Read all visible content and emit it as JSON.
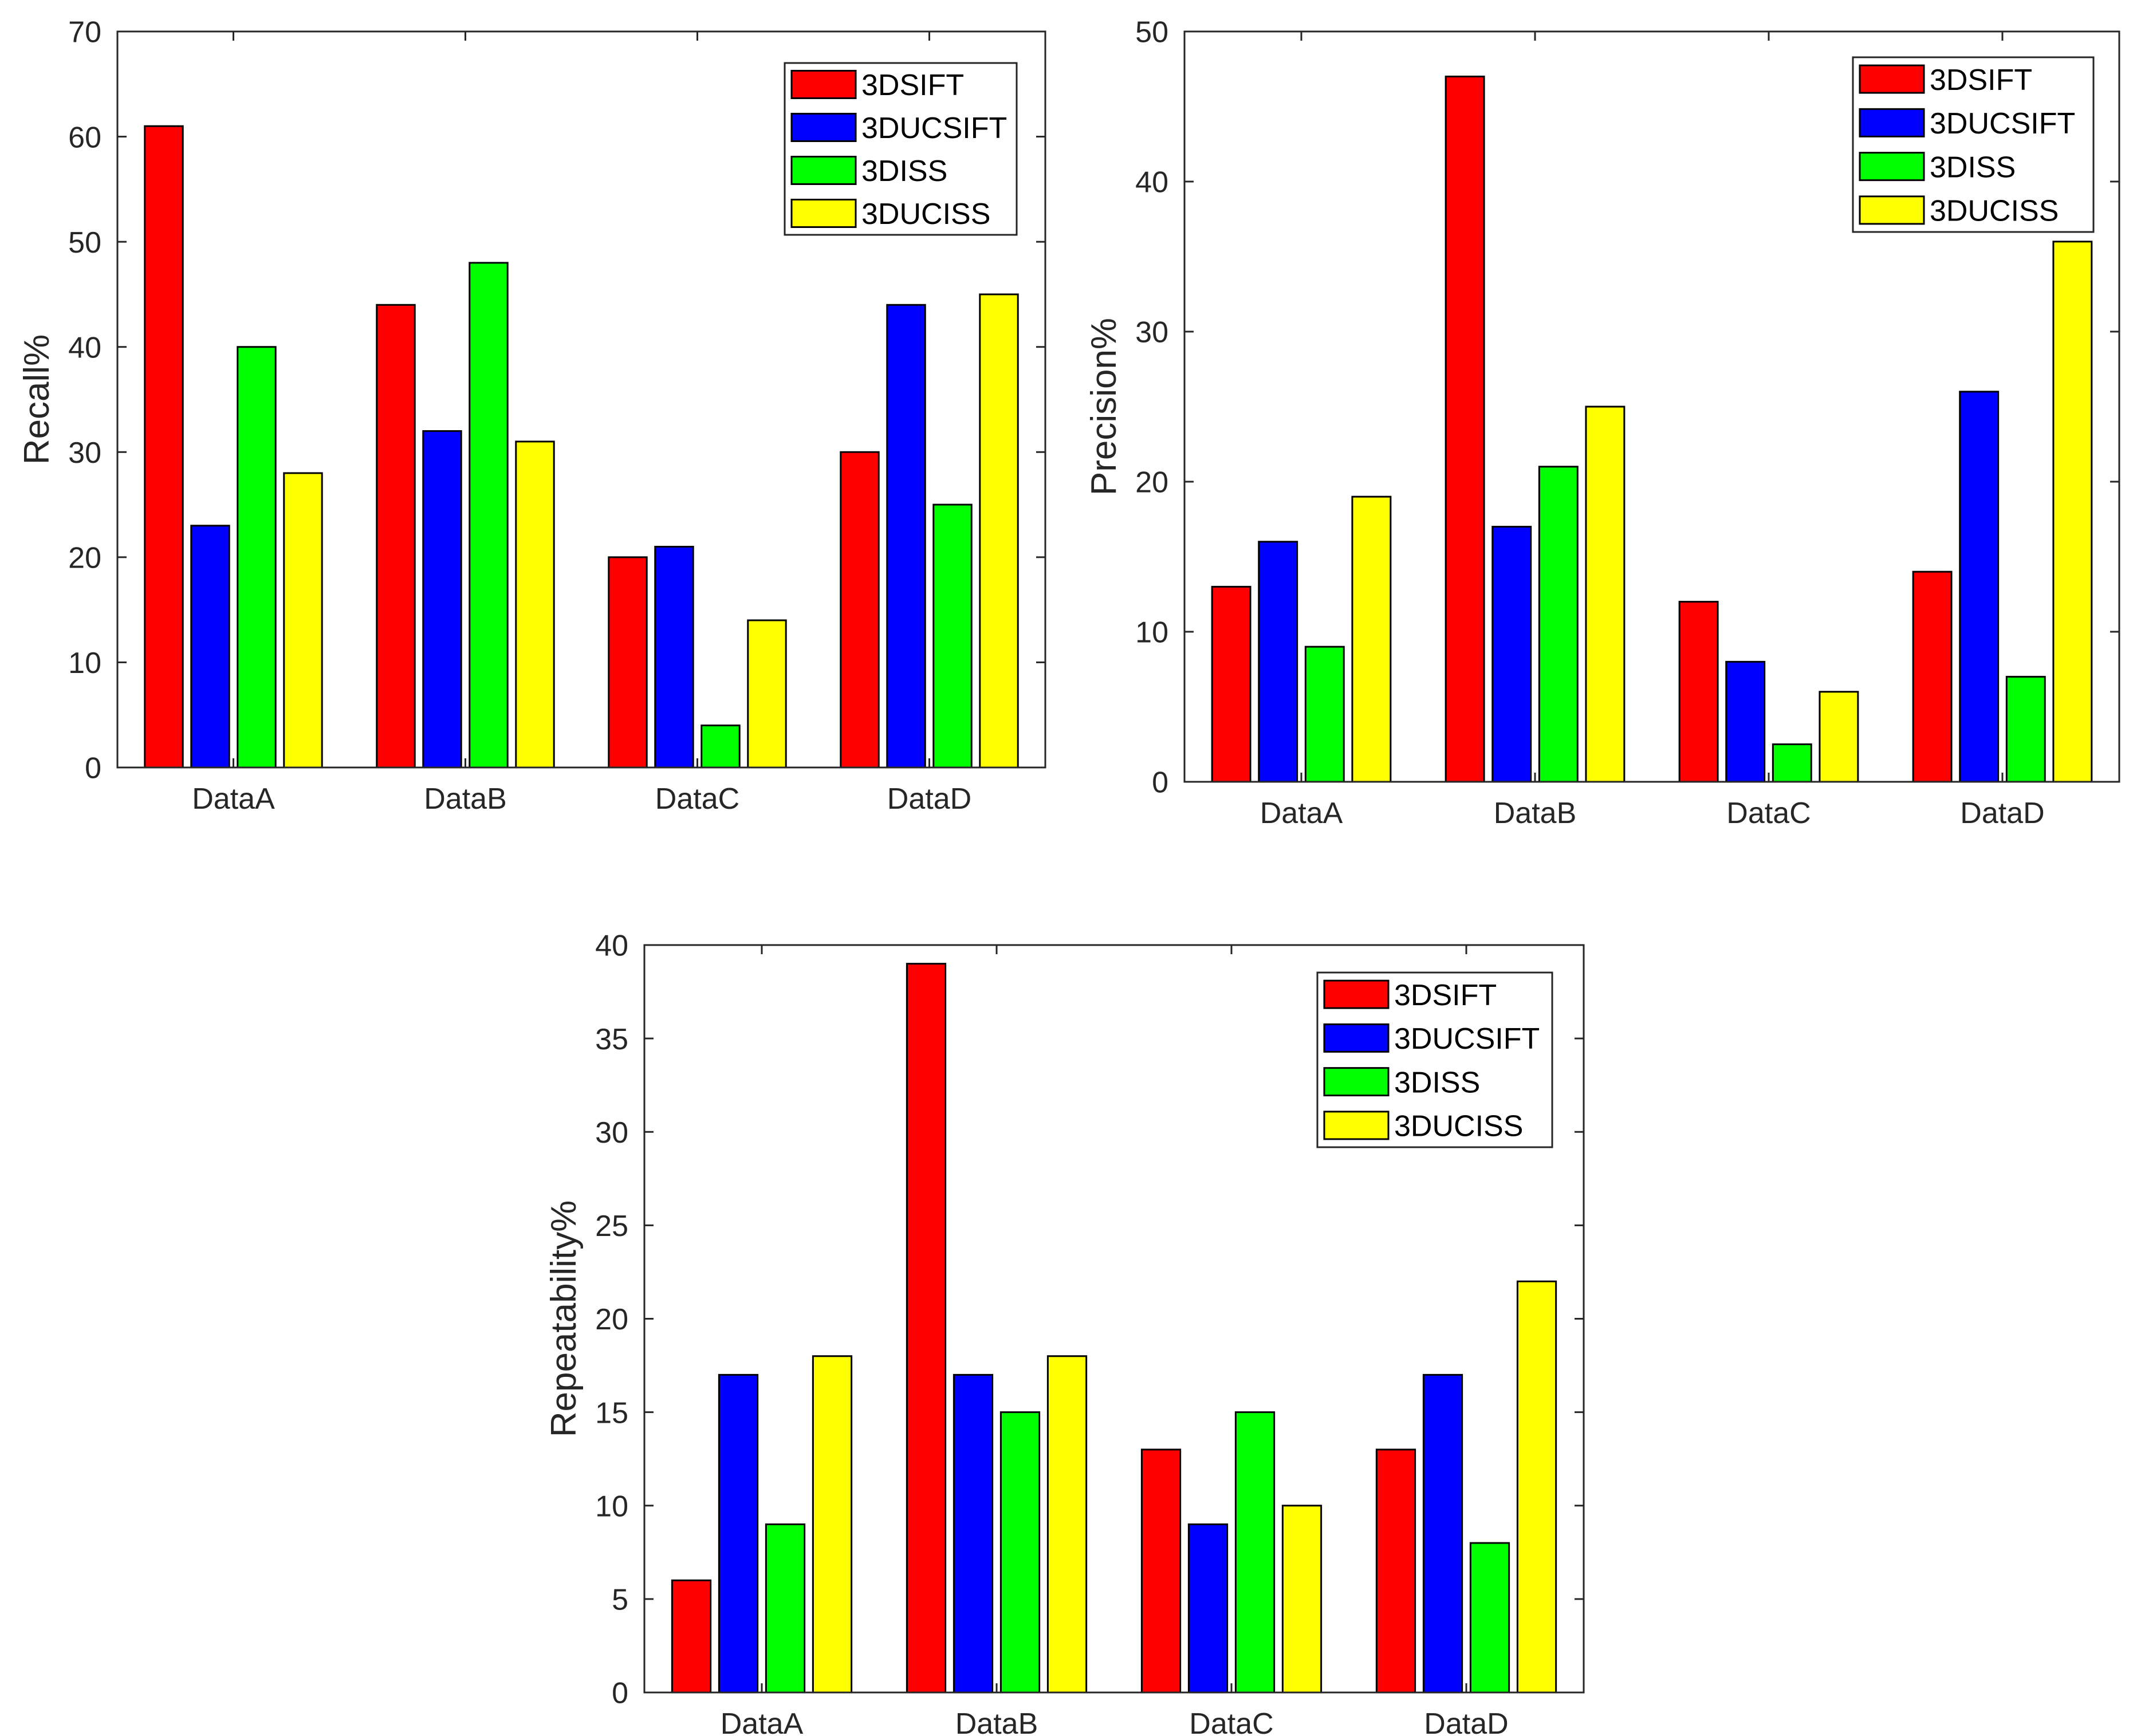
{
  "chart_data": [
    {
      "type": "bar",
      "title": "",
      "xlabel": "",
      "ylabel": "Recall%",
      "categories": [
        "DataA",
        "DataB",
        "DataC",
        "DataD"
      ],
      "ylim": [
        0,
        70
      ],
      "yticks": [
        0,
        10,
        20,
        30,
        40,
        50,
        60,
        70
      ],
      "legend_position": "top-right",
      "series": [
        {
          "name": "3DSIFT",
          "color": "#ff0000",
          "values": [
            61,
            44,
            20,
            30
          ]
        },
        {
          "name": "3DUCSIFT",
          "color": "#0000ff",
          "values": [
            23,
            32,
            21,
            44
          ]
        },
        {
          "name": "3DISS",
          "color": "#00ff00",
          "values": [
            40,
            48,
            4,
            25
          ]
        },
        {
          "name": "3DUCISS",
          "color": "#ffff00",
          "values": [
            28,
            31,
            14,
            45
          ]
        }
      ]
    },
    {
      "type": "bar",
      "title": "",
      "xlabel": "",
      "ylabel": "Precision%",
      "categories": [
        "DataA",
        "DataB",
        "DataC",
        "DataD"
      ],
      "ylim": [
        0,
        50
      ],
      "yticks": [
        0,
        10,
        20,
        30,
        40,
        50
      ],
      "legend_position": "top-right",
      "series": [
        {
          "name": "3DSIFT",
          "color": "#ff0000",
          "values": [
            13,
            47,
            12,
            14
          ]
        },
        {
          "name": "3DUCSIFT",
          "color": "#0000ff",
          "values": [
            16,
            17,
            8,
            26
          ]
        },
        {
          "name": "3DISS",
          "color": "#00ff00",
          "values": [
            9,
            21,
            2.5,
            7
          ]
        },
        {
          "name": "3DUCISS",
          "color": "#ffff00",
          "values": [
            19,
            25,
            6,
            36
          ]
        }
      ]
    },
    {
      "type": "bar",
      "title": "",
      "xlabel": "",
      "ylabel": "Repeatability%",
      "categories": [
        "DataA",
        "DataB",
        "DataC",
        "DataD"
      ],
      "ylim": [
        0,
        40
      ],
      "yticks": [
        0,
        5,
        10,
        15,
        20,
        25,
        30,
        35,
        40
      ],
      "legend_position": "top-right",
      "series": [
        {
          "name": "3DSIFT",
          "color": "#ff0000",
          "values": [
            6,
            39,
            13,
            13
          ]
        },
        {
          "name": "3DUCSIFT",
          "color": "#0000ff",
          "values": [
            17,
            17,
            9,
            17
          ]
        },
        {
          "name": "3DISS",
          "color": "#00ff00",
          "values": [
            9,
            15,
            15,
            8
          ]
        },
        {
          "name": "3DUCISS",
          "color": "#ffff00",
          "values": [
            18,
            18,
            10,
            22
          ]
        }
      ]
    }
  ]
}
